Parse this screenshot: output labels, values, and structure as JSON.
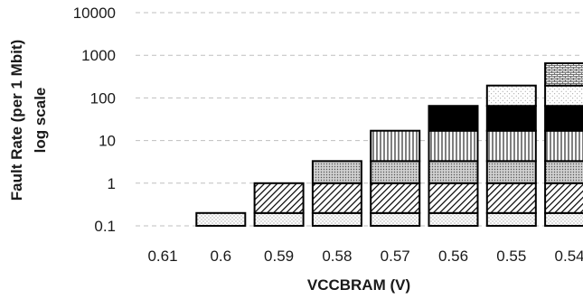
{
  "chart_data": {
    "type": "bar",
    "stacked": true,
    "ylog": true,
    "ylim": [
      0.1,
      10000
    ],
    "yticks": [
      "0.1",
      "1",
      "10",
      "100",
      "1000",
      "10000"
    ],
    "categories": [
      "0.61",
      "0.6",
      "0.59",
      "0.58",
      "0.57",
      "0.56",
      "0.55",
      "0.54"
    ],
    "xlabel": "VCCBRAM (V)",
    "ylabel": [
      "Fault Rate (per 1 Mbit)",
      "log scale"
    ],
    "grid": "horizontal-dashed",
    "segment_boundaries": [
      [],
      [
        0.2
      ],
      [
        0.2,
        1
      ],
      [
        0.2,
        1,
        3.3
      ],
      [
        0.2,
        1,
        3.3,
        17
      ],
      [
        0.2,
        1,
        3.3,
        17,
        65
      ],
      [
        0.2,
        1,
        3.3,
        17,
        65,
        195
      ],
      [
        0.2,
        1,
        3.3,
        17,
        65,
        195,
        650
      ]
    ],
    "segment_patterns": [
      "dots",
      "diagonal-hatch",
      "gray-dots",
      "vertical-lines",
      "solid-black",
      "light-dots",
      "brick"
    ],
    "colors": {
      "bar_stroke": "#000000",
      "grid": "#bfbfbf",
      "fill": "#ffffff",
      "solid": "#000000"
    }
  }
}
